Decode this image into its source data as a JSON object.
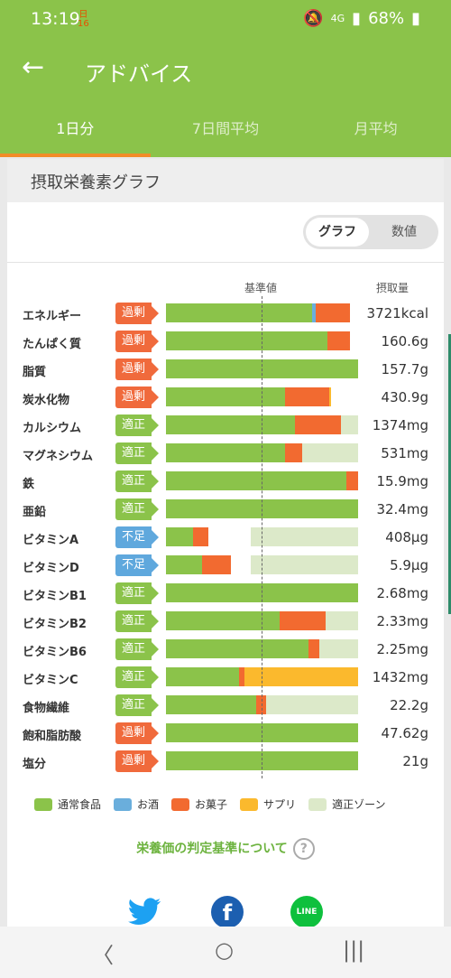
{
  "status": {
    "time": "13:19",
    "cal_day": "日",
    "cal_num": "16",
    "network": "4G",
    "battery": "68%"
  },
  "appbar": {
    "title": "アドバイス",
    "back_glyph": "←"
  },
  "tabs": [
    {
      "label": "1日分",
      "active": true
    },
    {
      "label": "7日間平均",
      "active": false
    },
    {
      "label": "月平均",
      "active": false
    }
  ],
  "section": {
    "title": "摂取栄養素グラフ"
  },
  "toggle": {
    "graph": "グラフ",
    "numbers": "数値",
    "selected": "graph"
  },
  "columns": {
    "standard": "基準値",
    "intake": "摂取量"
  },
  "colors": {
    "food": "#8bc34a",
    "alcohol": "#6aaedc",
    "snack": "#f26a30",
    "supplement": "#fbb92d",
    "zone": "#dce9c9"
  },
  "nutrients": [
    {
      "name": "エネルギー",
      "status": "過剰",
      "status_type": "over",
      "value": "3721kcal",
      "food": 0.76,
      "alcohol": 0.02,
      "snack": 0.18,
      "supplement": 0,
      "zone": [
        0.44,
        0.56
      ]
    },
    {
      "name": "たんぱく質",
      "status": "過剰",
      "status_type": "over",
      "value": "160.6g",
      "food": 0.84,
      "alcohol": 0,
      "snack": 0.12,
      "supplement": 0,
      "zone": [
        0.44,
        0.56
      ]
    },
    {
      "name": "脂質",
      "status": "過剰",
      "status_type": "over",
      "value": "157.7g",
      "food": 1.0,
      "alcohol": 0,
      "snack": 0,
      "supplement": 0,
      "zone": [
        0.44,
        0.56
      ]
    },
    {
      "name": "炭水化物",
      "status": "過剰",
      "status_type": "over",
      "value": "430.9g",
      "food": 0.62,
      "alcohol": 0,
      "snack": 0.23,
      "supplement": 0.01,
      "zone": [
        0.44,
        0.56
      ]
    },
    {
      "name": "カルシウム",
      "status": "適正",
      "status_type": "ok",
      "value": "1374mg",
      "food": 0.67,
      "alcohol": 0,
      "snack": 0.24,
      "supplement": 0,
      "zone": [
        0.44,
        1.0
      ]
    },
    {
      "name": "マグネシウム",
      "status": "適正",
      "status_type": "ok",
      "value": "531mg",
      "food": 0.62,
      "alcohol": 0,
      "snack": 0.09,
      "supplement": 0,
      "zone": [
        0.44,
        1.0
      ]
    },
    {
      "name": "鉄",
      "status": "適正",
      "status_type": "ok",
      "value": "15.9mg",
      "food": 0.94,
      "alcohol": 0,
      "snack": 0.06,
      "supplement": 0,
      "zone": [
        0.44,
        1.0
      ]
    },
    {
      "name": "亜鉛",
      "status": "適正",
      "status_type": "ok",
      "value": "32.4mg",
      "food": 1.0,
      "alcohol": 0,
      "snack": 0,
      "supplement": 0,
      "zone": [
        0.44,
        1.0
      ]
    },
    {
      "name": "ビタミンA",
      "status": "不足",
      "status_type": "low",
      "value": "408μg",
      "food": 0.14,
      "alcohol": 0,
      "snack": 0.08,
      "supplement": 0,
      "zone": [
        0.44,
        1.0
      ]
    },
    {
      "name": "ビタミンD",
      "status": "不足",
      "status_type": "low",
      "value": "5.9μg",
      "food": 0.19,
      "alcohol": 0,
      "snack": 0.15,
      "supplement": 0,
      "zone": [
        0.44,
        1.0
      ]
    },
    {
      "name": "ビタミンB1",
      "status": "適正",
      "status_type": "ok",
      "value": "2.68mg",
      "food": 1.0,
      "alcohol": 0,
      "snack": 0,
      "supplement": 0,
      "zone": [
        0.44,
        1.0
      ]
    },
    {
      "name": "ビタミンB2",
      "status": "適正",
      "status_type": "ok",
      "value": "2.33mg",
      "food": 0.59,
      "alcohol": 0,
      "snack": 0.24,
      "supplement": 0,
      "zone": [
        0.44,
        1.0
      ]
    },
    {
      "name": "ビタミンB6",
      "status": "適正",
      "status_type": "ok",
      "value": "2.25mg",
      "food": 0.74,
      "alcohol": 0,
      "snack": 0.06,
      "supplement": 0,
      "zone": [
        0.44,
        1.0
      ]
    },
    {
      "name": "ビタミンC",
      "status": "適正",
      "status_type": "ok",
      "value": "1432mg",
      "food": 0.38,
      "alcohol": 0,
      "snack": 0.03,
      "supplement": 0.59,
      "zone": [
        0.44,
        1.0
      ]
    },
    {
      "name": "食物繊維",
      "status": "適正",
      "status_type": "ok",
      "value": "22.2g",
      "food": 0.47,
      "alcohol": 0,
      "snack": 0.05,
      "supplement": 0,
      "zone": [
        0.44,
        1.0
      ]
    },
    {
      "name": "飽和脂肪酸",
      "status": "過剰",
      "status_type": "over",
      "value": "47.62g",
      "food": 1.0,
      "alcohol": 0,
      "snack": 0,
      "supplement": 0,
      "zone": [
        0.44,
        0.56
      ]
    },
    {
      "name": "塩分",
      "status": "過剰",
      "status_type": "over",
      "value": "21g",
      "food": 1.0,
      "alcohol": 0,
      "snack": 0,
      "supplement": 0,
      "zone": [
        0.44,
        0.56
      ]
    }
  ],
  "legend": [
    {
      "label": "通常食品",
      "color": "#8bc34a"
    },
    {
      "label": "お酒",
      "color": "#6aaedc"
    },
    {
      "label": "お菓子",
      "color": "#f26a30"
    },
    {
      "label": "サプリ",
      "color": "#fbb92d"
    },
    {
      "label": "適正ゾーン",
      "color": "#dce9c9"
    }
  ],
  "link": {
    "label": "栄養価の判定基準について",
    "help_glyph": "?"
  },
  "social": {
    "line": "LINE",
    "facebook": "f"
  },
  "navbar": {
    "back": "〈",
    "home": "○",
    "recent": "|||"
  }
}
